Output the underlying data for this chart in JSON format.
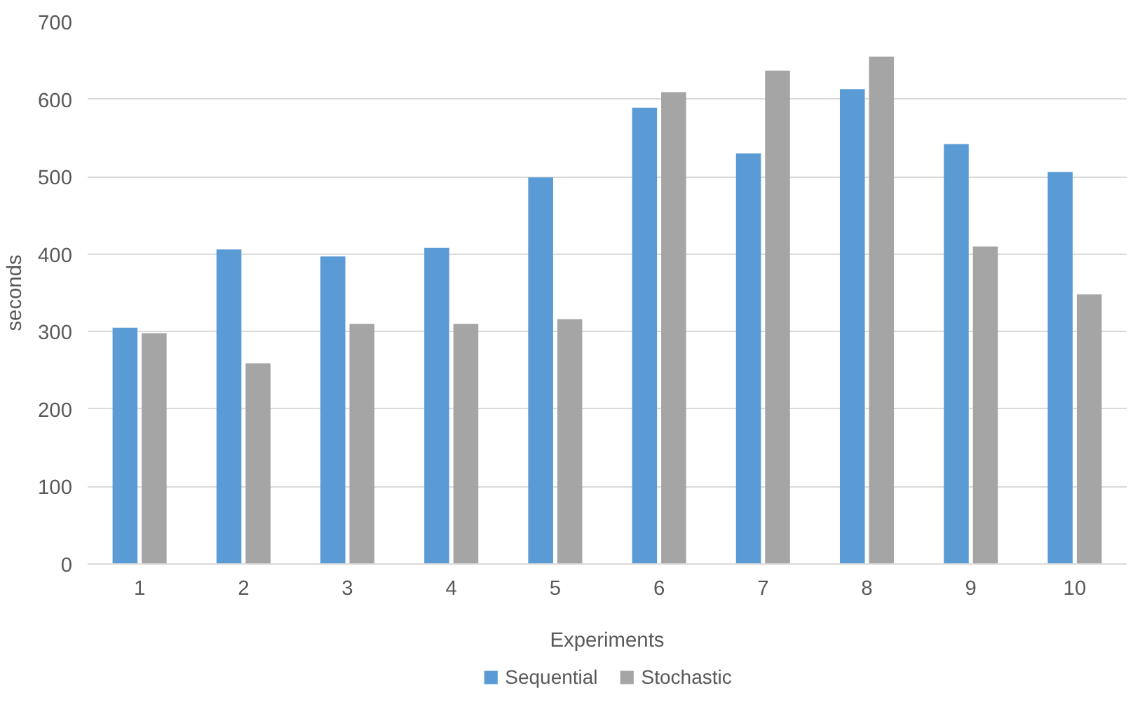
{
  "chart_data": {
    "type": "bar",
    "xlabel": "Experiments",
    "ylabel": "seconds",
    "categories": [
      "1",
      "2",
      "3",
      "4",
      "5",
      "6",
      "7",
      "8",
      "9",
      "10"
    ],
    "series": [
      {
        "name": "Sequential",
        "color": "#5b9bd5",
        "values": [
          305,
          406,
          397,
          408,
          499,
          589,
          530,
          613,
          542,
          506
        ]
      },
      {
        "name": "Stochastic",
        "color": "#a5a5a5",
        "values": [
          298,
          259,
          310,
          310,
          316,
          609,
          637,
          655,
          410,
          348
        ]
      }
    ],
    "ylim": [
      0,
      700
    ],
    "yticks": [
      0,
      100,
      200,
      300,
      400,
      500,
      600,
      700
    ],
    "grid": "y",
    "legend": "bottom"
  }
}
